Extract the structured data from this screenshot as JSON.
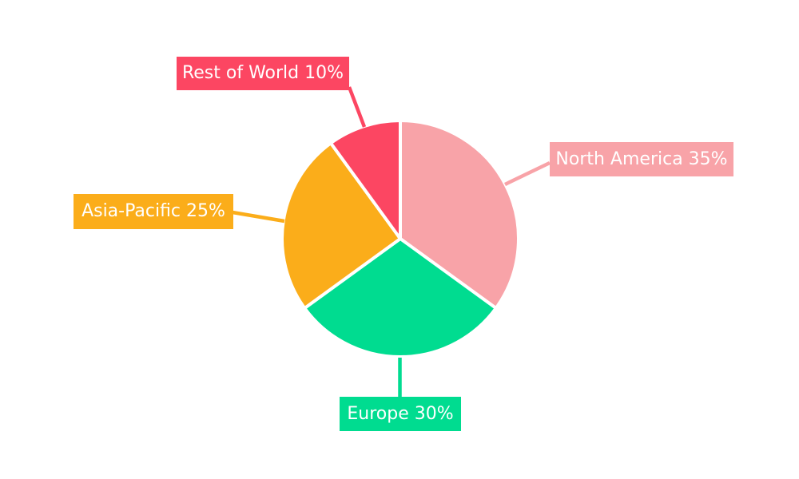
{
  "chart_data": {
    "type": "pie",
    "unit": "%",
    "direction": "clockwise",
    "start_angle_deg": 0,
    "legend_position": "none",
    "grid": false,
    "background_color": "#FFFFFF",
    "label_text_color": "#FFFFFF",
    "categories": [
      "North America",
      "Europe",
      "Asia-Pacific",
      "Rest of World"
    ],
    "values": [
      35,
      30,
      25,
      10
    ],
    "slices": [
      {
        "label": "North America",
        "value": 35,
        "display_label": "North America 35%",
        "color": "#F8A3A8"
      },
      {
        "label": "Europe",
        "value": 30,
        "display_label": "Europe 30%",
        "color": "#00DC90"
      },
      {
        "label": "Asia-Pacific",
        "value": 25,
        "display_label": "Asia-Pacific 25%",
        "color": "#FBAD1A"
      },
      {
        "label": "Rest of World",
        "value": 10,
        "display_label": "Rest of World 10%",
        "color": "#FC4662"
      }
    ]
  }
}
